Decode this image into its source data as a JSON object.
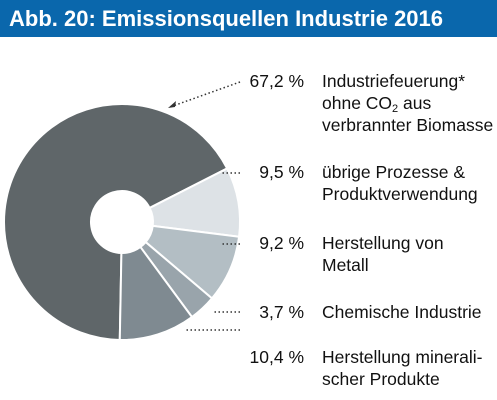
{
  "header": {
    "title": "Abb. 20: Emissionsquellen Industrie 2016",
    "color": "#0a67ac"
  },
  "chart_data": {
    "type": "pie",
    "variant": "donut",
    "title": "Abb. 20: Emissionsquellen Industrie 2016",
    "slices": [
      {
        "value": 67.2,
        "value_label": "67,2 %",
        "label_lines": [
          "Industriefeuerung*",
          "ohne CO",
          "verbrannter Biomasse"
        ],
        "label_sub": "2",
        "label_after_sub": " aus",
        "color": "#5f6669"
      },
      {
        "value": 9.5,
        "value_label": "9,5 %",
        "label_lines": [
          "übrige Prozesse &",
          "Produktverwendung"
        ],
        "color": "#dde2e6"
      },
      {
        "value": 9.2,
        "value_label": "9,2 %",
        "label_lines": [
          "Herstellung von",
          "Metall"
        ],
        "color": "#b3bec4"
      },
      {
        "value": 3.7,
        "value_label": "3,7 %",
        "label_lines": [
          "Chemische Industrie"
        ],
        "color": "#99a4ab"
      },
      {
        "value": 10.4,
        "value_label": "10,4 %",
        "label_lines": [
          "Herstellung minerali-",
          "scher Produkte"
        ],
        "color": "#7f8a91"
      }
    ],
    "legend_placement": "right"
  }
}
